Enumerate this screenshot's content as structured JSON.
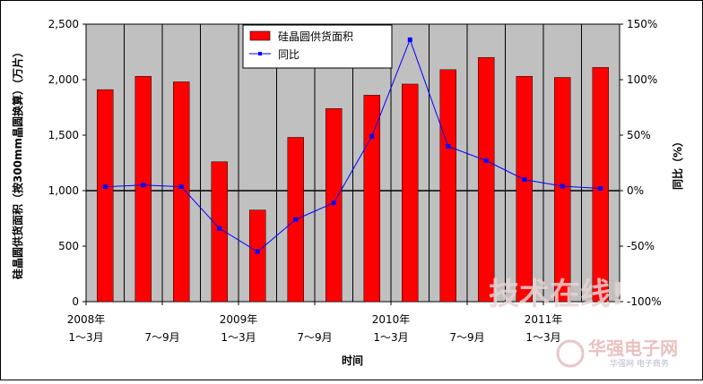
{
  "chart_data": {
    "type": "bar",
    "categories": [
      "2008年 1～3月",
      "",
      "7～9月",
      "",
      "2009年 1～3月",
      "",
      "7～9月",
      "",
      "2010年 1～3月",
      "",
      "7～9月",
      "",
      "2011年 1～3月",
      ""
    ],
    "x_tick_labels": [
      {
        "year": "2008年",
        "quarter": "1～3月"
      },
      {
        "year": "",
        "quarter": "7～9月"
      },
      {
        "year": "2009年",
        "quarter": "1～3月"
      },
      {
        "year": "",
        "quarter": "7～9月"
      },
      {
        "year": "2010年",
        "quarter": "1～3月"
      },
      {
        "year": "",
        "quarter": "7～9月"
      },
      {
        "year": "2011年",
        "quarter": "1～3月"
      }
    ],
    "series": [
      {
        "name": "硅晶圆供货面积",
        "type": "bar",
        "axis": "left",
        "color": "#ff0000",
        "values": [
          1910,
          2030,
          1980,
          1260,
          825,
          1480,
          1740,
          1860,
          1960,
          2090,
          2200,
          2030,
          2020,
          2110
        ]
      },
      {
        "name": "同比",
        "type": "line",
        "axis": "right",
        "color": "#0000ff",
        "values": [
          3.5,
          5,
          3.5,
          -34,
          -55,
          -26,
          -11,
          49,
          136,
          40,
          27,
          10,
          4,
          2
        ]
      }
    ],
    "y_left": {
      "label": "硅晶圆供货面积（按300mm晶圆换算）（万片）",
      "range": [
        0,
        2500
      ],
      "ticks": [
        "0",
        "500",
        "1,000",
        "1,500",
        "2,000",
        "2,500"
      ]
    },
    "y_right": {
      "label": "同比（%）",
      "range": [
        -100,
        150
      ],
      "ticks": [
        "-100%",
        "-50%",
        "0%",
        "50%",
        "100%",
        "150%"
      ]
    },
    "xlabel": "时间",
    "legend_position": "top-center",
    "grid": "vertical",
    "colors": {
      "plot_background": "#c0c0c0",
      "bar": "#ff0000",
      "line": "#0000ff",
      "gridline": "#000000"
    }
  },
  "watermark": {
    "main": "技术在线!",
    "sub": "华强电子网",
    "small": "华强网 电子商务"
  }
}
